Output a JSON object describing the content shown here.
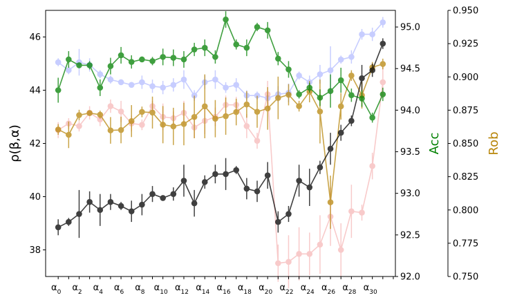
{
  "chart_data": {
    "type": "line",
    "x_labels": [
      "α",
      "α",
      "α",
      "α",
      "α",
      "α",
      "α",
      "α",
      "α",
      "α",
      "α",
      "α",
      "α",
      "α",
      "α",
      "α"
    ],
    "x_label_subscripts": [
      "0",
      "2",
      "4",
      "6",
      "8",
      "10",
      "12",
      "14",
      "16",
      "18",
      "20",
      "22",
      "24",
      "26",
      "28",
      "30"
    ],
    "x": [
      0,
      1,
      2,
      3,
      4,
      5,
      6,
      7,
      8,
      9,
      10,
      11,
      12,
      13,
      14,
      15,
      16,
      17,
      18,
      19,
      20,
      21,
      22,
      23,
      24,
      25,
      26,
      27,
      28,
      29,
      30,
      31
    ],
    "axes": {
      "left": {
        "label": "ρ(β,α)",
        "ylim": [
          37,
          47
        ],
        "ticks": [
          "38",
          "40",
          "42",
          "44",
          "46"
        ],
        "tick_values": [
          38,
          40,
          42,
          44,
          46
        ]
      },
      "acc": {
        "label": "Acc",
        "color": "#008000",
        "ylim": [
          92.0,
          95.2
        ],
        "ticks": [
          "92.0",
          "92.5",
          "93.0",
          "93.5",
          "94.0",
          "94.5",
          "95.0"
        ],
        "tick_values": [
          92.0,
          92.5,
          93.0,
          93.5,
          94.0,
          94.5,
          95.0
        ]
      },
      "rob": {
        "label": "Rob",
        "color": "#b8860b",
        "ylim": [
          0.75,
          0.95
        ],
        "ticks": [
          "0.750",
          "0.775",
          "0.800",
          "0.825",
          "0.850",
          "0.875",
          "0.900",
          "0.925",
          "0.950"
        ],
        "tick_values": [
          0.75,
          0.775,
          0.8,
          0.825,
          0.85,
          0.875,
          0.9,
          0.925,
          0.95
        ]
      }
    },
    "series": [
      {
        "axis": "left",
        "color": "#9aa6ff",
        "opacity": 0.55,
        "values": [
          45.05,
          44.75,
          45.05,
          44.95,
          44.6,
          44.4,
          44.3,
          44.2,
          44.3,
          44.15,
          44.1,
          44.2,
          44.4,
          43.8,
          44.3,
          44.4,
          44.1,
          44.2,
          43.8,
          43.8,
          43.7,
          43.85,
          43.9,
          44.55,
          44.3,
          44.6,
          44.75,
          45.15,
          45.25,
          46.1,
          46.1,
          46.55
        ],
        "errors": [
          0.15,
          0.15,
          0.5,
          0.25,
          0.15,
          0.15,
          0.1,
          0.1,
          0.25,
          0.25,
          0.25,
          0.25,
          0.35,
          0.2,
          0.25,
          0.35,
          0.2,
          0.25,
          0.2,
          0.15,
          0.2,
          0.3,
          0.35,
          0.15,
          0.25,
          0.35,
          0.9,
          0.15,
          0.25,
          0.2,
          0.25,
          0.2
        ]
      },
      {
        "axis": "left",
        "color": "#f4a0a0",
        "opacity": 0.55,
        "values": [
          42.5,
          42.75,
          42.65,
          43.15,
          42.9,
          43.4,
          43.2,
          42.75,
          42.7,
          43.4,
          43.0,
          42.95,
          43.15,
          42.6,
          42.85,
          43.0,
          43.45,
          43.45,
          42.65,
          42.1,
          43.85,
          37.5,
          37.55,
          37.85,
          37.85,
          38.2,
          39.25,
          38.0,
          39.45,
          39.4,
          41.15,
          44.3
        ],
        "errors": [
          0.3,
          0.2,
          0.2,
          0.25,
          0.25,
          0.25,
          0.4,
          0.3,
          0.2,
          0.2,
          0.5,
          0.25,
          0.45,
          0.4,
          0.5,
          0.35,
          0.35,
          0.3,
          0.45,
          0.3,
          0.5,
          0.7,
          1.0,
          1.0,
          0.8,
          1.1,
          1.1,
          1.0,
          1.0,
          0.3,
          0.5,
          0.6
        ]
      },
      {
        "axis": "rob",
        "color": "#b8860b",
        "opacity": 0.75,
        "values": [
          0.8605,
          0.8565,
          0.8713,
          0.8728,
          0.8716,
          0.8598,
          0.8601,
          0.8668,
          0.8737,
          0.8732,
          0.8641,
          0.8628,
          0.8646,
          0.8699,
          0.8779,
          0.8686,
          0.8705,
          0.8736,
          0.8793,
          0.8738,
          0.8763,
          0.8842,
          0.8866,
          0.878,
          0.8889,
          0.874,
          0.8058,
          0.8779,
          0.901,
          0.8862,
          0.9072,
          0.9097
        ],
        "errors": [
          0.004,
          0.01,
          0.004,
          0.002,
          0.003,
          0.01,
          0.01,
          0.012,
          0.004,
          0.012,
          0.014,
          0.014,
          0.016,
          0.016,
          0.024,
          0.014,
          0.014,
          0.01,
          0.01,
          0.012,
          0.016,
          0.016,
          0.008,
          0.004,
          0.008,
          0.024,
          0.02,
          0.01,
          0.004,
          0.01,
          0.004,
          0.004
        ]
      },
      {
        "axis": "left",
        "color": "#000000",
        "opacity": 0.75,
        "values": [
          38.85,
          39.05,
          39.35,
          39.8,
          39.5,
          39.8,
          39.65,
          39.45,
          39.7,
          40.1,
          39.95,
          40.1,
          40.6,
          39.75,
          40.55,
          40.85,
          40.85,
          41.0,
          40.3,
          40.2,
          40.8,
          39.05,
          39.35,
          40.6,
          40.35,
          41.1,
          41.8,
          42.4,
          42.85,
          44.45,
          44.75,
          45.75
        ],
        "errors": [
          0.3,
          0.15,
          0.9,
          0.4,
          0.6,
          0.3,
          0.15,
          0.4,
          0.4,
          0.3,
          0.1,
          0.25,
          0.6,
          0.5,
          0.25,
          0.35,
          0.6,
          0.15,
          0.4,
          0.4,
          0.5,
          0.4,
          0.3,
          0.6,
          0.7,
          0.25,
          0.6,
          0.3,
          0.2,
          0.5,
          0.25,
          0.2
        ]
      },
      {
        "axis": "acc",
        "color": "#008000",
        "opacity": 0.75,
        "values": [
          94.24,
          94.61,
          94.54,
          94.54,
          94.27,
          94.53,
          94.66,
          94.58,
          94.61,
          94.59,
          94.64,
          94.63,
          94.61,
          94.73,
          94.75,
          94.64,
          95.09,
          94.79,
          94.75,
          95.0,
          94.96,
          94.62,
          94.49,
          94.19,
          94.27,
          94.15,
          94.23,
          94.36,
          94.18,
          94.14,
          93.91,
          94.19
        ],
        "errors": [
          0.15,
          0.1,
          0.03,
          0.05,
          0.1,
          0.1,
          0.1,
          0.08,
          0.03,
          0.05,
          0.1,
          0.1,
          0.1,
          0.08,
          0.1,
          0.08,
          0.1,
          0.06,
          0.1,
          0.05,
          0.1,
          0.08,
          0.1,
          0.05,
          0.06,
          0.1,
          0.2,
          0.15,
          0.08,
          0.1,
          0.06,
          0.08
        ]
      }
    ]
  }
}
